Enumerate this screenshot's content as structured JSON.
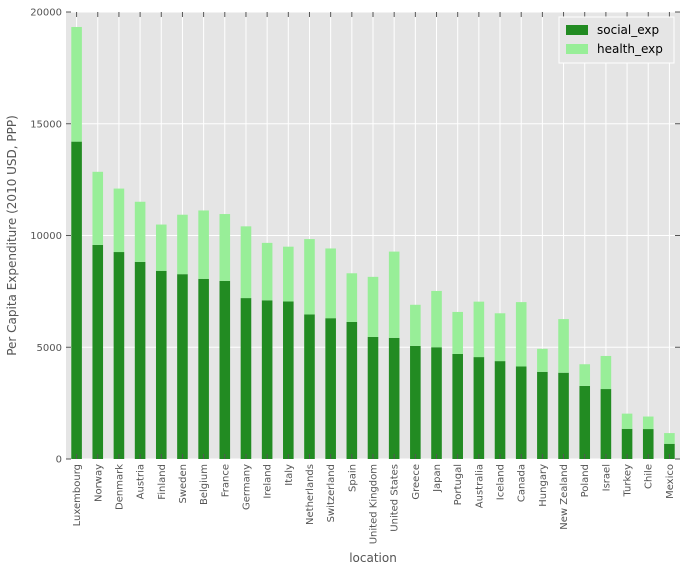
{
  "chart_data": {
    "type": "bar",
    "stacked": true,
    "title": "",
    "xlabel": "location",
    "ylabel": "Per Capita Expenditure (2010 USD, PPP)",
    "ylim": [
      0,
      20000
    ],
    "yticks": [
      "0",
      "5000",
      "10000",
      "15000",
      "20000"
    ],
    "grid": true,
    "legend_position": "top-right",
    "categories": [
      "Luxembourg",
      "Norway",
      "Denmark",
      "Austria",
      "Finland",
      "Sweden",
      "Belgium",
      "France",
      "Germany",
      "Ireland",
      "Italy",
      "Netherlands",
      "Switzerland",
      "Spain",
      "United Kingdom",
      "United States",
      "Greece",
      "Japan",
      "Portugal",
      "Australia",
      "Iceland",
      "Canada",
      "Hungary",
      "New Zealand",
      "Poland",
      "Israel",
      "Turkey",
      "Chile",
      "Mexico"
    ],
    "series": [
      {
        "name": "social_exp",
        "color": "#228b22",
        "values": [
          14200,
          9580,
          9260,
          8820,
          8420,
          8270,
          8060,
          7970,
          7200,
          7100,
          7050,
          6470,
          6300,
          6130,
          5460,
          5420,
          5060,
          5000,
          4700,
          4560,
          4380,
          4140,
          3900,
          3860,
          3270,
          3130,
          1350,
          1340,
          680
        ]
      },
      {
        "name": "health_exp",
        "color": "#98ee98",
        "values": [
          5130,
          3270,
          2840,
          2690,
          2070,
          2660,
          3060,
          2990,
          3210,
          2570,
          2450,
          3370,
          3120,
          2180,
          2690,
          3860,
          1840,
          2520,
          1880,
          2480,
          2140,
          2880,
          1030,
          2400,
          970,
          1480,
          680,
          560,
          480
        ]
      }
    ]
  }
}
